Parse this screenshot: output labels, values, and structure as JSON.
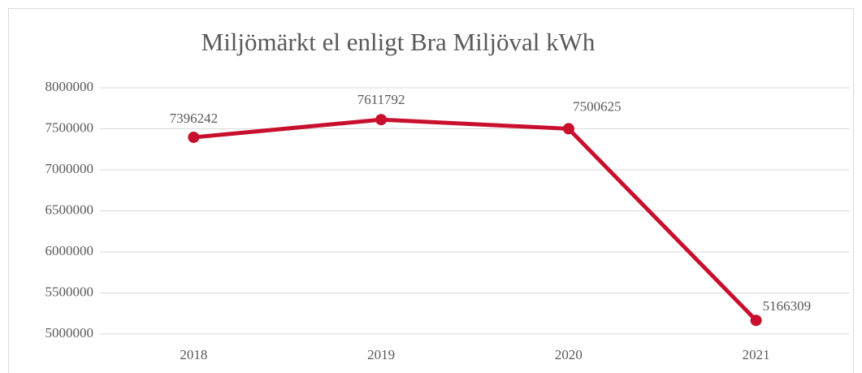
{
  "chart_data": {
    "type": "line",
    "title": "Miljömärkt el enligt Bra Miljöval kWh",
    "categories": [
      "2018",
      "2019",
      "2020",
      "2021"
    ],
    "series": [
      {
        "name": "Miljömärkt el",
        "color": "#c8102e",
        "values": [
          7396242,
          7611792,
          7500625,
          5166309
        ]
      }
    ],
    "ylim": [
      5000000,
      8000000
    ],
    "yticks": [
      5000000,
      5500000,
      6000000,
      6500000,
      7000000,
      7500000,
      8000000
    ],
    "grid": true
  }
}
